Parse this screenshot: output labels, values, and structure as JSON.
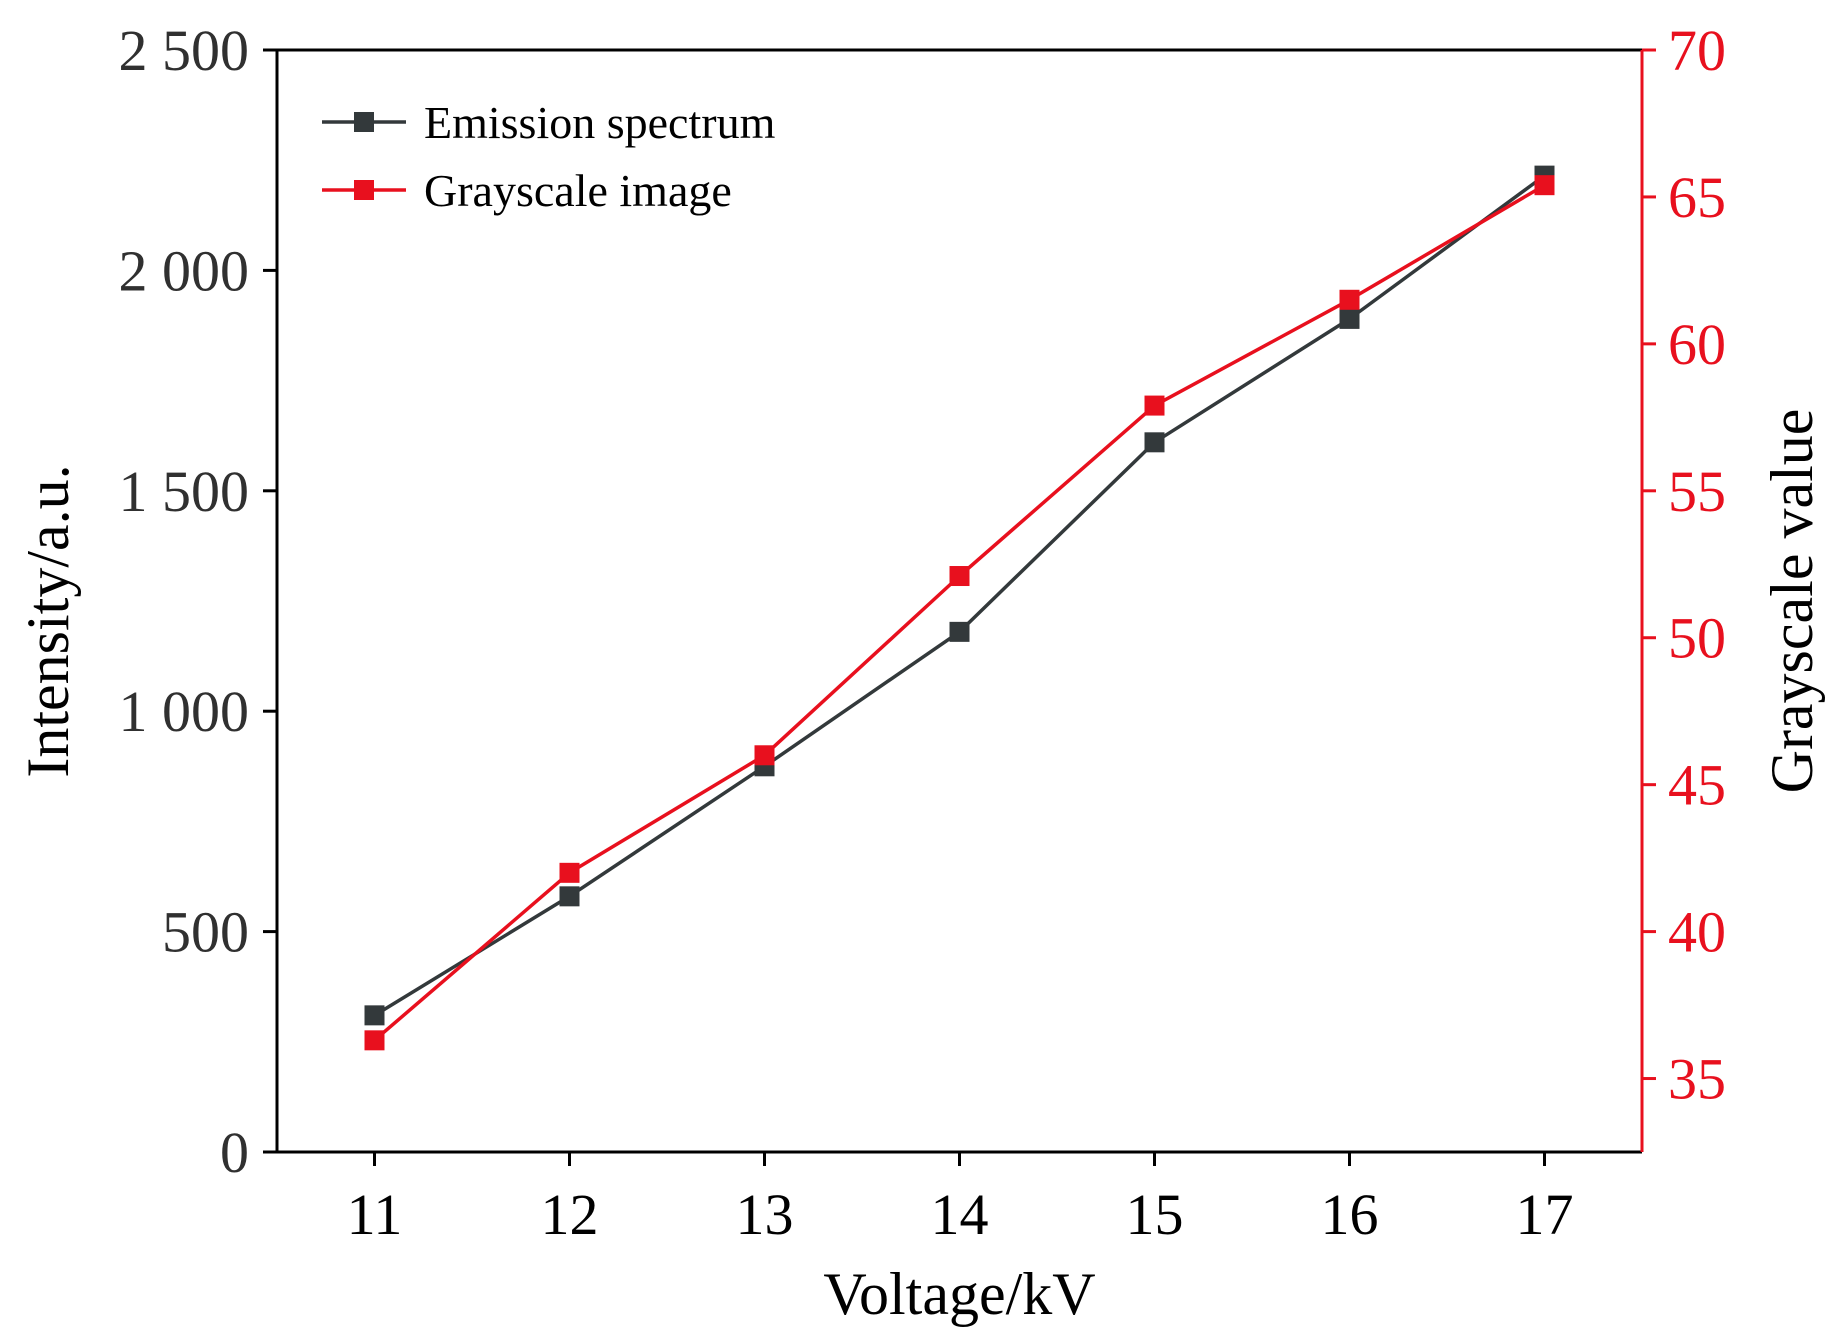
{
  "colors": {
    "series_dark": "#33393b",
    "series_red": "#e8101e",
    "axis_black": "#000000",
    "left_tick_text": "#303030",
    "right_axis": "#e8101e"
  },
  "chart_data": {
    "type": "line",
    "x": [
      11,
      12,
      13,
      14,
      15,
      16,
      17
    ],
    "xlabel": "Voltage/kV",
    "ylabel_left": "Intensity/a.u.",
    "ylabel_right": "Grayscale value",
    "x_ticks": [
      "11",
      "12",
      "13",
      "14",
      "15",
      "16",
      "17"
    ],
    "xlim": [
      10.5,
      17.5
    ],
    "y_left_ticks": [
      "0",
      "500",
      "1 000",
      "1 500",
      "2 000",
      "2 500"
    ],
    "y_left_tick_values": [
      0,
      500,
      1000,
      1500,
      2000,
      2500
    ],
    "ylim_left": [
      0,
      2500
    ],
    "y_right_ticks": [
      "35",
      "40",
      "45",
      "50",
      "55",
      "60",
      "65",
      "70"
    ],
    "y_right_tick_values": [
      35,
      40,
      45,
      50,
      55,
      60,
      65,
      70
    ],
    "ylim_right": [
      32.5,
      70
    ],
    "grid": false,
    "legend_position": "top-left",
    "series": [
      {
        "name": "Emission spectrum",
        "axis": "left",
        "color": "#33393b",
        "marker": "square",
        "values": [
          310,
          580,
          875,
          1180,
          1610,
          1890,
          2215
        ]
      },
      {
        "name": "Grayscale image",
        "axis": "right",
        "color": "#e8101e",
        "marker": "square",
        "values": [
          36.3,
          42.0,
          46.0,
          52.1,
          57.9,
          61.5,
          65.4
        ]
      }
    ]
  }
}
